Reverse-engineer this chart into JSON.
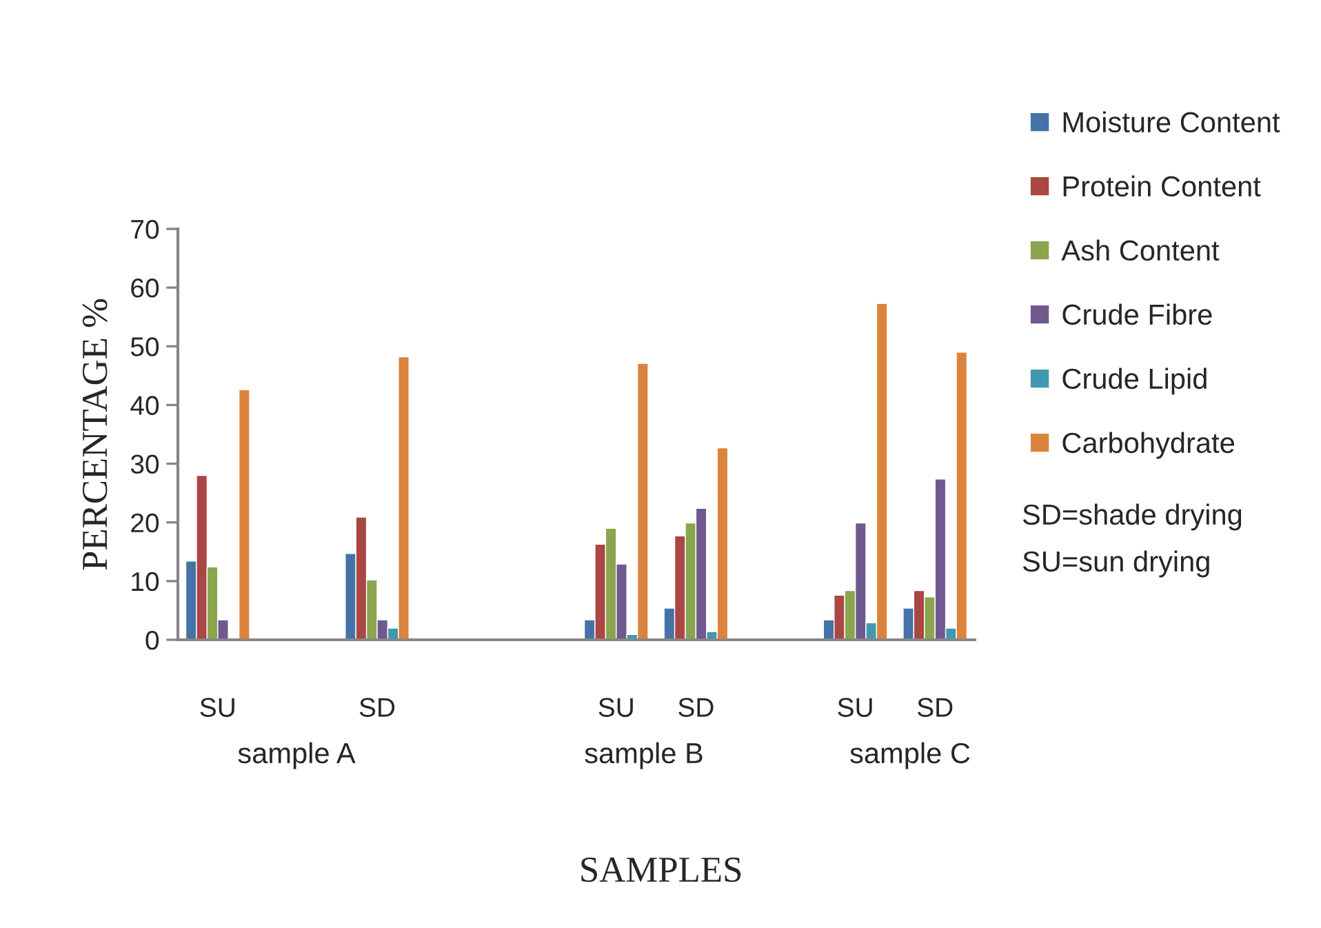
{
  "chart_data": {
    "type": "bar",
    "xlabel": "SAMPLES",
    "ylabel": "PERCENTAGE %",
    "categories": [
      "SU",
      null,
      "SD",
      null,
      null,
      "SU",
      "SD",
      null,
      "SU",
      "SD"
    ],
    "series": [
      {
        "name": "Moisture Content",
        "color": "#4572a7",
        "values": [
          13.4,
          null,
          14.7,
          null,
          null,
          3.4,
          5.4,
          null,
          3.4,
          5.4
        ]
      },
      {
        "name": "Protein Content",
        "color": "#aa4643",
        "values": [
          28.0,
          null,
          20.9,
          null,
          null,
          16.3,
          17.7,
          null,
          7.6,
          8.4
        ]
      },
      {
        "name": "Ash Content",
        "color": "#89a54e",
        "values": [
          12.4,
          null,
          10.2,
          null,
          null,
          19.0,
          19.9,
          null,
          8.4,
          7.3
        ]
      },
      {
        "name": "Crude Fibre",
        "color": "#71588f",
        "values": [
          3.4,
          null,
          3.4,
          null,
          null,
          12.9,
          22.4,
          null,
          19.9,
          27.4
        ]
      },
      {
        "name": "Crude Lipid",
        "color": "#4198af",
        "values": [
          null,
          null,
          2.0,
          null,
          null,
          0.9,
          1.4,
          null,
          2.9,
          2.0
        ]
      },
      {
        "name": "Carbohydrate",
        "color": "#db843d",
        "values": [
          42.6,
          null,
          48.2,
          null,
          null,
          47.1,
          32.7,
          null,
          57.3,
          49.0
        ]
      }
    ],
    "ylim": [
      0,
      70
    ],
    "yticks": [
      0,
      10,
      20,
      30,
      40,
      50,
      60,
      70
    ],
    "grid": false,
    "legend": "right",
    "annotations": [
      "sample A",
      "sample B",
      "sample C",
      "SD=shade drying",
      "SU=sun drying"
    ]
  }
}
